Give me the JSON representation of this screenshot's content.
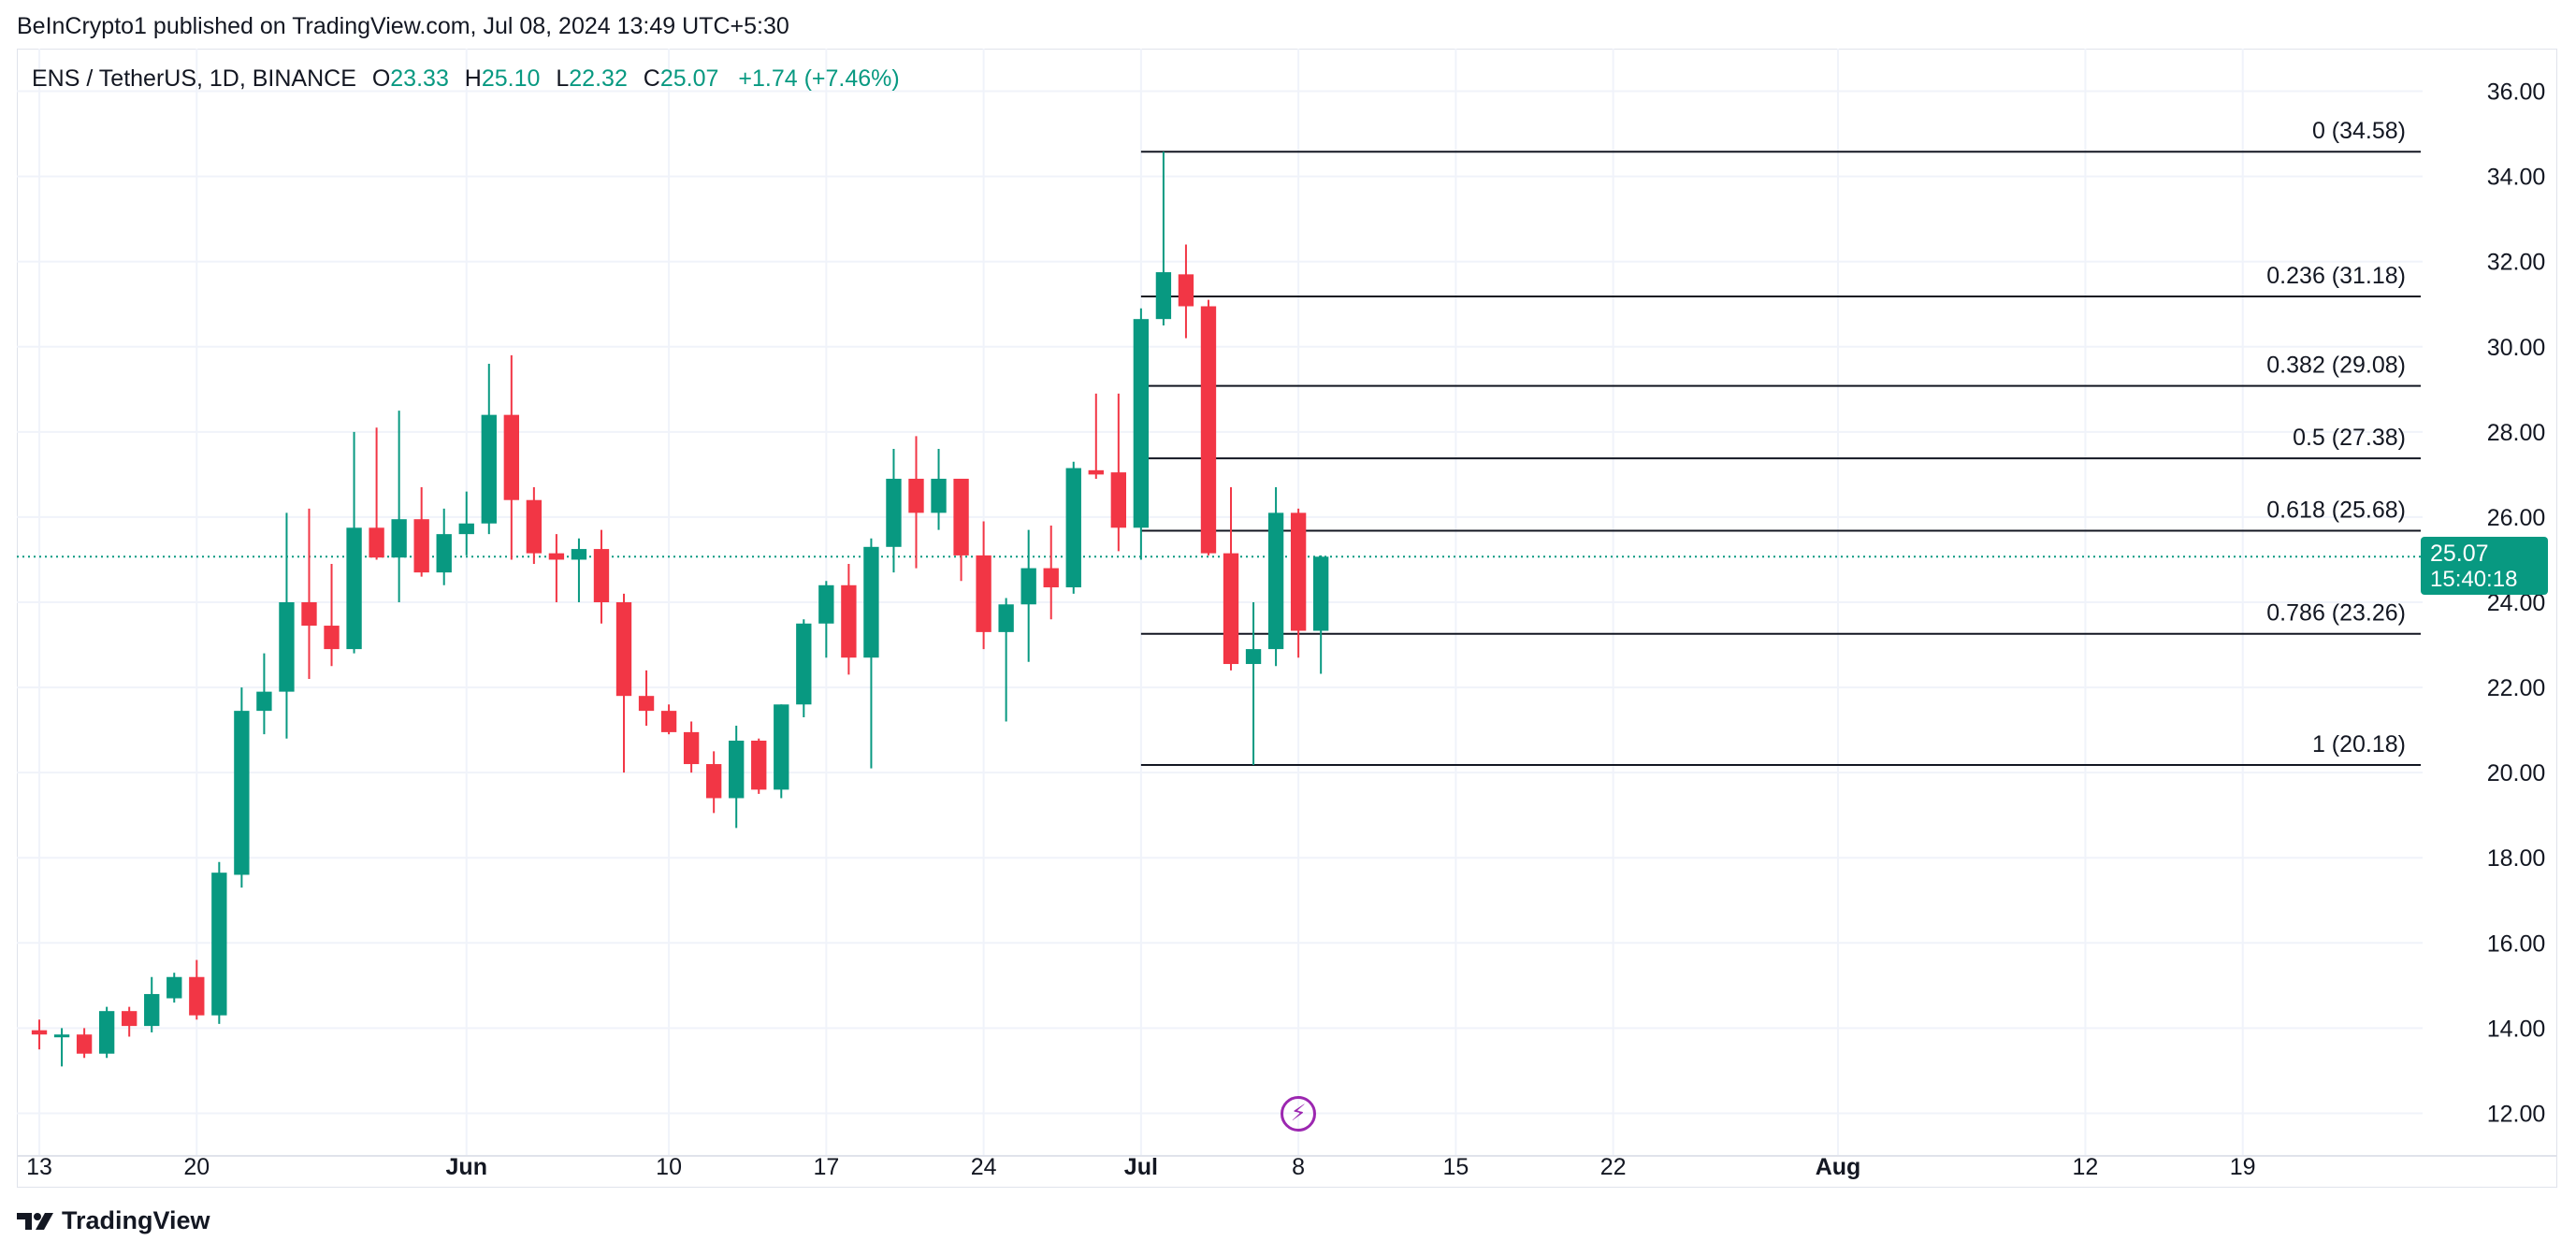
{
  "publisher": "BeInCrypto1 published on TradingView.com, Jul 08, 2024 13:49 UTC+5:30",
  "symbol": {
    "name": "ENS / TetherUS, 1D, BINANCE",
    "o_label": "O",
    "o_value": "23.33",
    "h_label": "H",
    "h_value": "25.10",
    "l_label": "L",
    "l_value": "22.32",
    "c_label": "C",
    "c_value": "25.07",
    "change": "+1.74 (+7.46%)"
  },
  "price_badge": {
    "price": "25.07",
    "countdown": "15:40:18"
  },
  "footer": {
    "brand": "TradingView"
  },
  "colors": {
    "up": "#089981",
    "down": "#f23645",
    "grid": "#f0f3fa",
    "fib_line": "#131722",
    "event": "#9c27b0"
  },
  "icons": {
    "event_marker": "lightning-icon",
    "logo": "tradingview-logo-icon"
  },
  "chart_data": {
    "type": "candlestick",
    "ylim": [
      11.0,
      37.0
    ],
    "y_ticks": [
      "12.00",
      "14.00",
      "16.00",
      "18.00",
      "20.00",
      "22.00",
      "24.00",
      "26.00",
      "28.00",
      "30.00",
      "32.00",
      "34.00",
      "36.00"
    ],
    "x_ticks": [
      {
        "label": "13",
        "day": 0,
        "bold": false
      },
      {
        "label": "20",
        "day": 7,
        "bold": false
      },
      {
        "label": "Jun",
        "day": 19,
        "bold": true
      },
      {
        "label": "10",
        "day": 28,
        "bold": false
      },
      {
        "label": "17",
        "day": 35,
        "bold": false
      },
      {
        "label": "24",
        "day": 42,
        "bold": false
      },
      {
        "label": "Jul",
        "day": 49,
        "bold": true
      },
      {
        "label": "8",
        "day": 56,
        "bold": false
      },
      {
        "label": "15",
        "day": 63,
        "bold": false
      },
      {
        "label": "22",
        "day": 70,
        "bold": false
      },
      {
        "label": "Aug",
        "day": 80,
        "bold": true
      },
      {
        "label": "12",
        "day": 91,
        "bold": false
      },
      {
        "label": "19",
        "day": 98,
        "bold": false
      }
    ],
    "x_range_days": [
      -1,
      106
    ],
    "candles": [
      {
        "o": 13.95,
        "h": 14.2,
        "l": 13.5,
        "c": 13.85
      },
      {
        "o": 13.85,
        "h": 14.0,
        "l": 13.1,
        "c": 13.85
      },
      {
        "o": 13.85,
        "h": 14.0,
        "l": 13.3,
        "c": 13.4
      },
      {
        "o": 13.4,
        "h": 14.5,
        "l": 13.3,
        "c": 14.4
      },
      {
        "o": 14.4,
        "h": 14.5,
        "l": 13.8,
        "c": 14.05
      },
      {
        "o": 14.05,
        "h": 15.2,
        "l": 13.9,
        "c": 14.8
      },
      {
        "o": 14.7,
        "h": 15.3,
        "l": 14.6,
        "c": 15.2
      },
      {
        "o": 15.2,
        "h": 15.6,
        "l": 14.2,
        "c": 14.3
      },
      {
        "o": 14.3,
        "h": 17.9,
        "l": 14.1,
        "c": 17.65
      },
      {
        "o": 17.6,
        "h": 22.0,
        "l": 17.3,
        "c": 21.45
      },
      {
        "o": 21.45,
        "h": 22.8,
        "l": 20.9,
        "c": 21.9
      },
      {
        "o": 21.9,
        "h": 26.1,
        "l": 20.8,
        "c": 24.0
      },
      {
        "o": 24.0,
        "h": 26.2,
        "l": 22.2,
        "c": 23.45
      },
      {
        "o": 23.45,
        "h": 24.9,
        "l": 22.5,
        "c": 22.9
      },
      {
        "o": 22.9,
        "h": 28.0,
        "l": 22.8,
        "c": 25.75
      },
      {
        "o": 25.75,
        "h": 28.1,
        "l": 25.0,
        "c": 25.05
      },
      {
        "o": 25.05,
        "h": 28.5,
        "l": 24.0,
        "c": 25.95
      },
      {
        "o": 25.95,
        "h": 26.7,
        "l": 24.6,
        "c": 24.7
      },
      {
        "o": 24.7,
        "h": 26.2,
        "l": 24.4,
        "c": 25.6
      },
      {
        "o": 25.6,
        "h": 26.6,
        "l": 25.1,
        "c": 25.85
      },
      {
        "o": 25.85,
        "h": 29.6,
        "l": 25.6,
        "c": 28.4
      },
      {
        "o": 28.4,
        "h": 29.8,
        "l": 25.0,
        "c": 26.4
      },
      {
        "o": 26.4,
        "h": 26.7,
        "l": 24.9,
        "c": 25.15
      },
      {
        "o": 25.15,
        "h": 25.6,
        "l": 24.0,
        "c": 25.0
      },
      {
        "o": 25.0,
        "h": 25.5,
        "l": 24.0,
        "c": 25.25
      },
      {
        "o": 25.25,
        "h": 25.7,
        "l": 23.5,
        "c": 24.0
      },
      {
        "o": 24.0,
        "h": 24.2,
        "l": 20.0,
        "c": 21.8
      },
      {
        "o": 21.8,
        "h": 22.4,
        "l": 21.1,
        "c": 21.45
      },
      {
        "o": 21.45,
        "h": 21.6,
        "l": 20.9,
        "c": 20.95
      },
      {
        "o": 20.95,
        "h": 21.2,
        "l": 20.0,
        "c": 20.2
      },
      {
        "o": 20.2,
        "h": 20.5,
        "l": 19.05,
        "c": 19.4
      },
      {
        "o": 19.4,
        "h": 21.1,
        "l": 18.7,
        "c": 20.75
      },
      {
        "o": 20.75,
        "h": 20.8,
        "l": 19.5,
        "c": 19.6
      },
      {
        "o": 19.6,
        "h": 21.6,
        "l": 19.4,
        "c": 21.6
      },
      {
        "o": 21.6,
        "h": 23.6,
        "l": 21.3,
        "c": 23.5
      },
      {
        "o": 23.5,
        "h": 24.5,
        "l": 22.7,
        "c": 24.4
      },
      {
        "o": 24.4,
        "h": 24.9,
        "l": 22.3,
        "c": 22.7
      },
      {
        "o": 22.7,
        "h": 25.5,
        "l": 20.1,
        "c": 25.3
      },
      {
        "o": 25.3,
        "h": 27.6,
        "l": 24.7,
        "c": 26.9
      },
      {
        "o": 26.9,
        "h": 27.9,
        "l": 24.8,
        "c": 26.1
      },
      {
        "o": 26.1,
        "h": 27.6,
        "l": 25.7,
        "c": 26.9
      },
      {
        "o": 26.9,
        "h": 26.9,
        "l": 24.5,
        "c": 25.1
      },
      {
        "o": 25.1,
        "h": 25.9,
        "l": 22.9,
        "c": 23.3
      },
      {
        "o": 23.3,
        "h": 24.1,
        "l": 21.2,
        "c": 23.95
      },
      {
        "o": 23.95,
        "h": 25.7,
        "l": 22.6,
        "c": 24.8
      },
      {
        "o": 24.8,
        "h": 25.8,
        "l": 23.6,
        "c": 24.35
      },
      {
        "o": 24.35,
        "h": 27.3,
        "l": 24.2,
        "c": 27.15
      },
      {
        "o": 27.1,
        "h": 28.9,
        "l": 26.9,
        "c": 27.0
      },
      {
        "o": 27.05,
        "h": 28.9,
        "l": 25.2,
        "c": 25.75
      },
      {
        "o": 25.75,
        "h": 30.9,
        "l": 25.0,
        "c": 30.65
      },
      {
        "o": 30.65,
        "h": 34.58,
        "l": 30.5,
        "c": 31.75
      },
      {
        "o": 31.7,
        "h": 32.4,
        "l": 30.2,
        "c": 30.95
      },
      {
        "o": 30.95,
        "h": 31.1,
        "l": 25.1,
        "c": 25.15
      },
      {
        "o": 25.15,
        "h": 26.7,
        "l": 22.4,
        "c": 22.55
      },
      {
        "o": 22.55,
        "h": 24.0,
        "l": 20.18,
        "c": 22.9
      },
      {
        "o": 22.9,
        "h": 26.7,
        "l": 22.5,
        "c": 26.1
      },
      {
        "o": 26.1,
        "h": 26.2,
        "l": 22.7,
        "c": 23.33
      },
      {
        "o": 23.33,
        "h": 25.1,
        "l": 22.32,
        "c": 25.07
      }
    ],
    "fib_levels": [
      {
        "ratio": 0,
        "value": 34.58,
        "label": "0 (34.58)"
      },
      {
        "ratio": 0.236,
        "value": 31.18,
        "label": "0.236 (31.18)"
      },
      {
        "ratio": 0.382,
        "value": 29.08,
        "label": "0.382 (29.08)"
      },
      {
        "ratio": 0.5,
        "value": 27.38,
        "label": "0.5 (27.38)"
      },
      {
        "ratio": 0.618,
        "value": 25.68,
        "label": "0.618 (25.68)"
      },
      {
        "ratio": 0.786,
        "value": 23.26,
        "label": "0.786 (23.26)"
      },
      {
        "ratio": 1,
        "value": 20.18,
        "label": "1 (20.18)"
      }
    ],
    "fib_start_day": 49,
    "last_price": 25.07,
    "event_marker_day": 56
  }
}
